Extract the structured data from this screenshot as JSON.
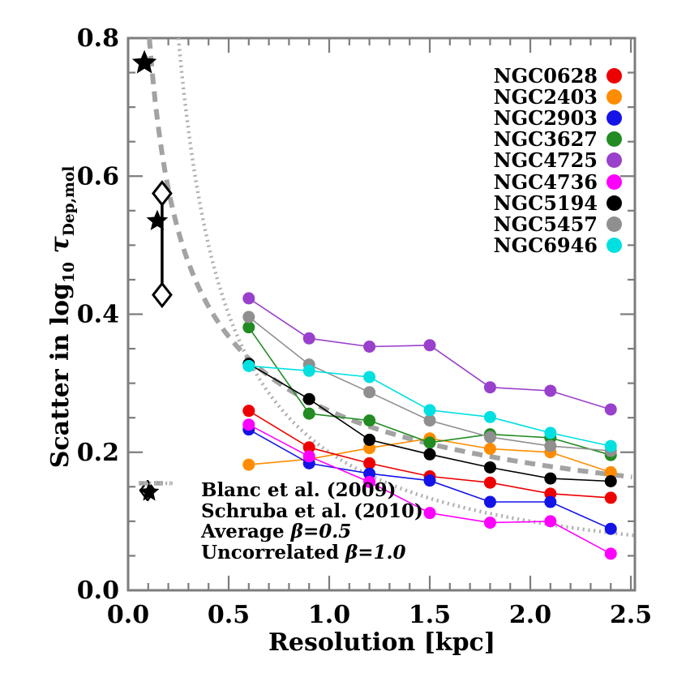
{
  "chart_data": {
    "type": "line",
    "xlabel": "Resolution [kpc]",
    "ylabel": {
      "prefix": "Scatter in log",
      "log_sub": "10",
      "tau": "τ",
      "tau_sub": "Dep,mol"
    },
    "xlim": [
      0,
      2.52
    ],
    "ylim": [
      0,
      0.8
    ],
    "x_ticks_major": [
      "0.0",
      "0.5",
      "1.0",
      "1.5",
      "2.0",
      "2.5"
    ],
    "y_ticks_major": [
      "0.0",
      "0.2",
      "0.4",
      "0.6",
      "0.8"
    ],
    "x_minor_step": 0.1,
    "y_minor_step": 0.05,
    "grid": false,
    "x": [
      0.6,
      0.9,
      1.2,
      1.5,
      1.8,
      2.1,
      2.4
    ],
    "series": [
      {
        "name": "NGC0628",
        "color": "#ee0000",
        "values": [
          0.26,
          0.207,
          0.184,
          0.165,
          0.156,
          0.14,
          0.134
        ]
      },
      {
        "name": "NGC2403",
        "color": "#ff8c00",
        "values": [
          0.182,
          0.19,
          0.206,
          0.22,
          0.205,
          0.2,
          0.171
        ]
      },
      {
        "name": "NGC2903",
        "color": "#1414e6",
        "values": [
          0.233,
          0.184,
          0.169,
          0.159,
          0.128,
          0.128,
          0.089
        ]
      },
      {
        "name": "NGC3627",
        "color": "#228b22",
        "values": [
          0.381,
          0.256,
          0.246,
          0.214,
          0.226,
          0.221,
          0.196
        ]
      },
      {
        "name": "NGC4725",
        "color": "#9940cc",
        "values": [
          0.423,
          0.365,
          0.353,
          0.355,
          0.294,
          0.289,
          0.262
        ]
      },
      {
        "name": "NGC4736",
        "color": "#ff00ff",
        "values": [
          0.24,
          0.194,
          0.157,
          0.112,
          0.098,
          0.1,
          0.053
        ]
      },
      {
        "name": "NGC5194",
        "color": "#000000",
        "values": [
          0.328,
          0.277,
          0.218,
          0.197,
          0.178,
          0.162,
          0.158
        ]
      },
      {
        "name": "NGC5457",
        "color": "#8f8f8f",
        "values": [
          0.396,
          0.327,
          0.287,
          0.246,
          0.222,
          0.209,
          0.202
        ]
      },
      {
        "name": "NGC6946",
        "color": "#00e0e0",
        "values": [
          0.325,
          0.318,
          0.309,
          0.261,
          0.251,
          0.228,
          0.209
        ]
      }
    ],
    "draw_order": [
      "NGC2403",
      "NGC0628",
      "NGC2903",
      "NGC4736",
      "NGC3627",
      "NGC5457",
      "NGC5194",
      "NGC6946",
      "NGC4725"
    ],
    "reference_curves": [
      {
        "label": "Average",
        "beta": "β=0.5",
        "style": "dashed",
        "color": "#a3a3a3",
        "coef": 0.26,
        "exponent": -0.5
      },
      {
        "label": "Uncorrelated",
        "beta": "β=1.0",
        "style": "dotted",
        "color": "#b2b2b2",
        "coef": 0.2,
        "exponent": -1.0
      }
    ],
    "special_points": [
      {
        "label": "Schruba et al. (2010)",
        "marker": "star",
        "points": [
          [
            0.081,
            0.764
          ],
          [
            0.145,
            0.535
          ]
        ]
      },
      {
        "label": "Blanc et al. (2009)",
        "marker": "diamond",
        "points": [
          [
            0.169,
            0.575
          ],
          [
            0.169,
            0.428
          ]
        ],
        "errorbar_x": 0.169
      }
    ],
    "legend_refs": [
      {
        "symbol": "diamond",
        "label": "Blanc et al. (2009)",
        "beta": ""
      },
      {
        "symbol": "star",
        "label": "Schruba et al. (2010)",
        "beta": ""
      },
      {
        "symbol": "dashed",
        "label": "Average",
        "beta": "β=0.5"
      },
      {
        "symbol": "dotted",
        "label": "Uncorrelated",
        "beta": "β=1.0"
      }
    ]
  }
}
